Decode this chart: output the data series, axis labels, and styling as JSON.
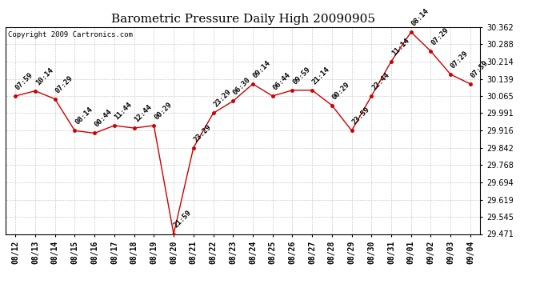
{
  "title": "Barometric Pressure Daily High 20090905",
  "copyright": "Copyright 2009 Cartronics.com",
  "dates": [
    "08/12",
    "08/13",
    "08/14",
    "08/15",
    "08/16",
    "08/17",
    "08/18",
    "08/19",
    "08/20",
    "08/21",
    "08/22",
    "08/23",
    "08/24",
    "08/25",
    "08/26",
    "08/27",
    "08/28",
    "08/29",
    "08/30",
    "08/31",
    "09/01",
    "09/02",
    "09/03",
    "09/04"
  ],
  "values": [
    30.065,
    30.087,
    30.052,
    29.916,
    29.905,
    29.938,
    29.927,
    29.938,
    29.471,
    29.842,
    29.991,
    30.043,
    30.117,
    30.065,
    30.09,
    30.09,
    30.025,
    29.916,
    30.065,
    30.214,
    30.34,
    30.258,
    30.158,
    30.117
  ],
  "time_labels": [
    "07:59",
    "10:14",
    "07:29",
    "08:14",
    "00:44",
    "11:44",
    "12:44",
    "00:29",
    "21:59",
    "23:29",
    "23:29",
    "06:30",
    "09:14",
    "06:44",
    "09:59",
    "21:14",
    "00:29",
    "23:59",
    "22:44",
    "11:14",
    "08:14",
    "07:29",
    "07:29",
    "07:59"
  ],
  "ylim_min": 29.471,
  "ylim_max": 30.362,
  "yticks": [
    29.471,
    29.545,
    29.619,
    29.694,
    29.768,
    29.842,
    29.916,
    29.991,
    30.065,
    30.139,
    30.214,
    30.288,
    30.362
  ],
  "line_color": "#cc0000",
  "marker_color": "#cc0000",
  "bg_color": "#ffffff",
  "grid_color": "#cccccc",
  "title_fontsize": 11,
  "label_fontsize": 6.5,
  "tick_fontsize": 7,
  "copyright_fontsize": 6.5
}
